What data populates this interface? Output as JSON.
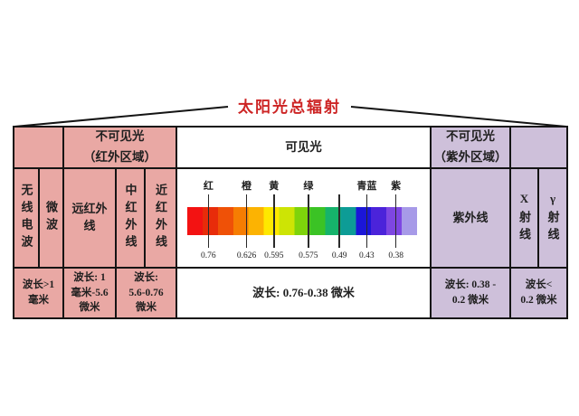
{
  "title": "太阳光总辐射",
  "colors": {
    "pink": "#e9a8a4",
    "purple": "#cec0da",
    "border": "#141414",
    "title_red": "#cd2424",
    "text": "#1f1f1f"
  },
  "header": {
    "infrared": "不可见光\n（红外区域）",
    "visible": "可见光",
    "ultraviolet": "不可见光\n（紫外区域）"
  },
  "bands": {
    "radio": "无线电波",
    "microwave": "微波",
    "far_infrared": "远红外\n线",
    "mid_infrared": "中红外线",
    "near_infrared": "近红外线",
    "ultraviolet": "紫外线",
    "xray": "X射线",
    "gamma": "γ射线"
  },
  "wavelengths": {
    "radio_microwave": "波长>1\n毫米",
    "far_infrared": "波长: 1\n毫米-5.6\n微米",
    "mid_near_infrared": "波长:\n5.6-0.76\n微米",
    "visible": "波长: 0.76-0.38 微米",
    "ultraviolet": "波长: 0.38 -\n0.2 微米",
    "xray_gamma": "波长<\n0.2 微米"
  },
  "spectrum": {
    "ticks": [
      {
        "pos": 9.2,
        "label": "红",
        "value": "0.76"
      },
      {
        "pos": 25.8,
        "label": "橙",
        "value": "0.626"
      },
      {
        "pos": 37.7,
        "label": "黄",
        "value": "0.595"
      },
      {
        "pos": 52.7,
        "label": "绿",
        "value": "0.575"
      },
      {
        "pos": 66.2,
        "label": "",
        "value": "0.49"
      },
      {
        "pos": 78.1,
        "label": "青蓝",
        "value": "0.43"
      },
      {
        "pos": 90.8,
        "label": "紫",
        "value": "0.38"
      }
    ],
    "gradient": [
      "#f31212",
      "#e82c0a",
      "#ef5107",
      "#f67d02",
      "#fcb302",
      "#fee800",
      "#cde405",
      "#7ed30b",
      "#3bc325",
      "#16b36b",
      "#0d9c96",
      "#1b16d8",
      "#4b23da",
      "#7e46e2",
      "#a79ae8"
    ]
  }
}
